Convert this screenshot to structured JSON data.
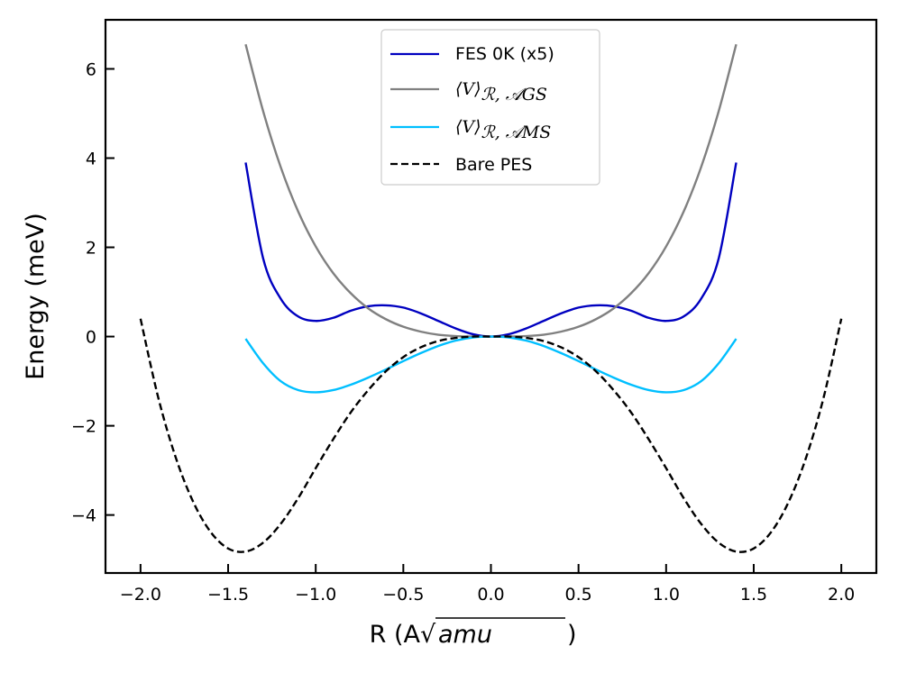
{
  "chart_data": {
    "type": "line",
    "title": "",
    "xlabel": "R (A",
    "xlabel_sqrt_arg": "amu",
    "xlabel_close": ")",
    "ylabel": "Energy (meV)",
    "xlim": [
      -2.2,
      2.2
    ],
    "ylim": [
      -5.3,
      7.1
    ],
    "xticks": [
      -2.0,
      -1.5,
      -1.0,
      -0.5,
      0.0,
      0.5,
      1.0,
      1.5,
      2.0
    ],
    "xtick_labels": [
      "−2.0",
      "−1.5",
      "−1.0",
      "−0.5",
      "0.0",
      "0.5",
      "1.0",
      "1.5",
      "2.0"
    ],
    "yticks": [
      -4,
      -2,
      0,
      2,
      4,
      6
    ],
    "ytick_labels": [
      "−4",
      "−2",
      "0",
      "2",
      "4",
      "6"
    ],
    "grid": false,
    "legend_position": "top-center",
    "series": [
      {
        "name": "FES 0K (x5)",
        "color": "#0000c0",
        "dash": "solid",
        "x": [
          -1.4,
          -1.3,
          -1.2,
          -1.1,
          -1.0,
          -0.9,
          -0.8,
          -0.7,
          -0.6,
          -0.5,
          -0.4,
          -0.3,
          -0.2,
          -0.1,
          0.0,
          0.1,
          0.2,
          0.3,
          0.4,
          0.5,
          0.6,
          0.7,
          0.8,
          0.9,
          1.0,
          1.1,
          1.2,
          1.3,
          1.4
        ],
        "y": [
          3.9,
          1.75,
          0.85,
          0.45,
          0.35,
          0.42,
          0.58,
          0.68,
          0.7,
          0.65,
          0.52,
          0.35,
          0.18,
          0.05,
          0.0,
          0.05,
          0.18,
          0.35,
          0.52,
          0.65,
          0.7,
          0.68,
          0.58,
          0.42,
          0.35,
          0.45,
          0.85,
          1.75,
          3.9
        ]
      },
      {
        "name_main": "⟨V⟩",
        "name_sub": "ℛ, 𝒜GS",
        "color": "#808080",
        "dash": "solid",
        "x": [
          -1.4,
          -1.3,
          -1.2,
          -1.1,
          -1.0,
          -0.9,
          -0.8,
          -0.7,
          -0.6,
          -0.5,
          -0.4,
          -0.3,
          -0.2,
          -0.1,
          0.0,
          0.1,
          0.2,
          0.3,
          0.4,
          0.5,
          0.6,
          0.7,
          0.8,
          0.9,
          1.0,
          1.1,
          1.2,
          1.3,
          1.4
        ],
        "y": [
          6.55,
          5.05,
          3.8,
          2.8,
          2.02,
          1.42,
          0.97,
          0.63,
          0.39,
          0.22,
          0.11,
          0.04,
          0.01,
          0.0,
          0.0,
          0.0,
          0.01,
          0.04,
          0.11,
          0.22,
          0.39,
          0.63,
          0.97,
          1.42,
          2.02,
          2.8,
          3.8,
          5.05,
          6.55
        ]
      },
      {
        "name_main": "⟨V⟩",
        "name_sub": "ℛ, 𝒜MS",
        "color": "#00bfff",
        "dash": "solid",
        "x": [
          -1.4,
          -1.3,
          -1.2,
          -1.1,
          -1.0,
          -0.9,
          -0.8,
          -0.7,
          -0.6,
          -0.5,
          -0.4,
          -0.3,
          -0.2,
          -0.1,
          0.0,
          0.1,
          0.2,
          0.3,
          0.4,
          0.5,
          0.6,
          0.7,
          0.8,
          0.9,
          1.0,
          1.1,
          1.2,
          1.3,
          1.4
        ],
        "y": [
          -0.05,
          -0.6,
          -1.0,
          -1.2,
          -1.25,
          -1.2,
          -1.08,
          -0.92,
          -0.74,
          -0.55,
          -0.37,
          -0.21,
          -0.09,
          -0.02,
          0.0,
          -0.02,
          -0.09,
          -0.21,
          -0.37,
          -0.55,
          -0.74,
          -0.92,
          -1.08,
          -1.2,
          -1.25,
          -1.2,
          -1.0,
          -0.6,
          -0.05
        ]
      },
      {
        "name": "Bare PES",
        "color": "#000000",
        "dash": "dashed",
        "x": [
          -2.0,
          -1.9,
          -1.8,
          -1.7,
          -1.6,
          -1.5,
          -1.4,
          -1.3,
          -1.2,
          -1.1,
          -1.0,
          -0.9,
          -0.8,
          -0.7,
          -0.6,
          -0.5,
          -0.4,
          -0.3,
          -0.2,
          -0.1,
          0.0,
          0.1,
          0.2,
          0.3,
          0.4,
          0.5,
          0.6,
          0.7,
          0.8,
          0.9,
          1.0,
          1.1,
          1.2,
          1.3,
          1.4,
          1.5,
          1.6,
          1.7,
          1.8,
          1.9,
          2.0
        ],
        "y": [
          0.4,
          -1.35,
          -2.7,
          -3.7,
          -4.38,
          -4.75,
          -4.82,
          -4.62,
          -4.2,
          -3.62,
          -2.95,
          -2.3,
          -1.7,
          -1.2,
          -0.78,
          -0.46,
          -0.24,
          -0.1,
          -0.03,
          0.0,
          0.0,
          0.0,
          -0.03,
          -0.1,
          -0.24,
          -0.46,
          -0.78,
          -1.2,
          -1.7,
          -2.3,
          -2.95,
          -3.62,
          -4.2,
          -4.62,
          -4.82,
          -4.75,
          -4.38,
          -3.7,
          -2.7,
          -1.35,
          0.4
        ]
      }
    ]
  }
}
